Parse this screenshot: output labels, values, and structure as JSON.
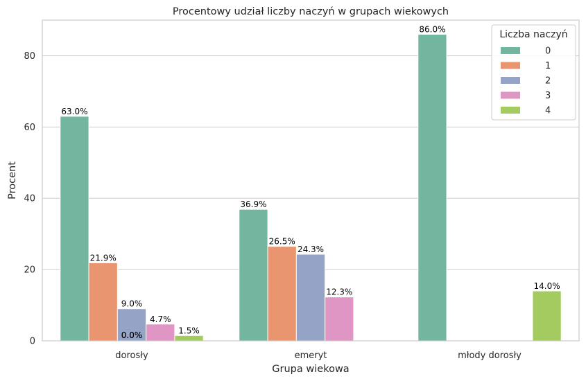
{
  "chart_data": {
    "type": "bar",
    "title": "Procentowy udział liczby naczyń w grupach wiekowych",
    "xlabel": "Grupa wiekowa",
    "ylabel": "Procent",
    "categories": [
      "dorosły",
      "emeryt",
      "młody dorosły"
    ],
    "ylim": [
      0,
      90
    ],
    "yticks": [
      0,
      20,
      40,
      60,
      80
    ],
    "grid": "horizontal",
    "legend": {
      "title": "Liczba naczyń",
      "placement": "top-right"
    },
    "series": [
      {
        "name": "0",
        "color": "#72b6a0",
        "values": [
          63.0,
          36.9,
          86.0
        ],
        "labels": [
          "63.0%",
          "36.9%",
          "86.0%"
        ]
      },
      {
        "name": "1",
        "color": "#e9956f",
        "values": [
          21.9,
          26.5,
          null
        ],
        "labels": [
          "21.9%",
          "26.5%",
          null
        ]
      },
      {
        "name": "2",
        "color": "#95a4c6",
        "values": [
          9.0,
          24.3,
          null
        ],
        "labels": [
          "9.0%",
          "24.3%",
          null
        ]
      },
      {
        "name": "3",
        "color": "#df96c4",
        "values": [
          4.7,
          12.3,
          null
        ],
        "labels": [
          "4.7%",
          "12.3%",
          null
        ]
      },
      {
        "name": "4",
        "color": "#a4cb5f",
        "values": [
          1.5,
          null,
          14.0
        ],
        "labels": [
          "1.5%",
          null,
          "14.0%"
        ]
      }
    ],
    "extra_labels": [
      {
        "category": "dorosły",
        "text": "0.0%"
      },
      {
        "category": "dorosły",
        "text": "0.0%"
      }
    ]
  }
}
